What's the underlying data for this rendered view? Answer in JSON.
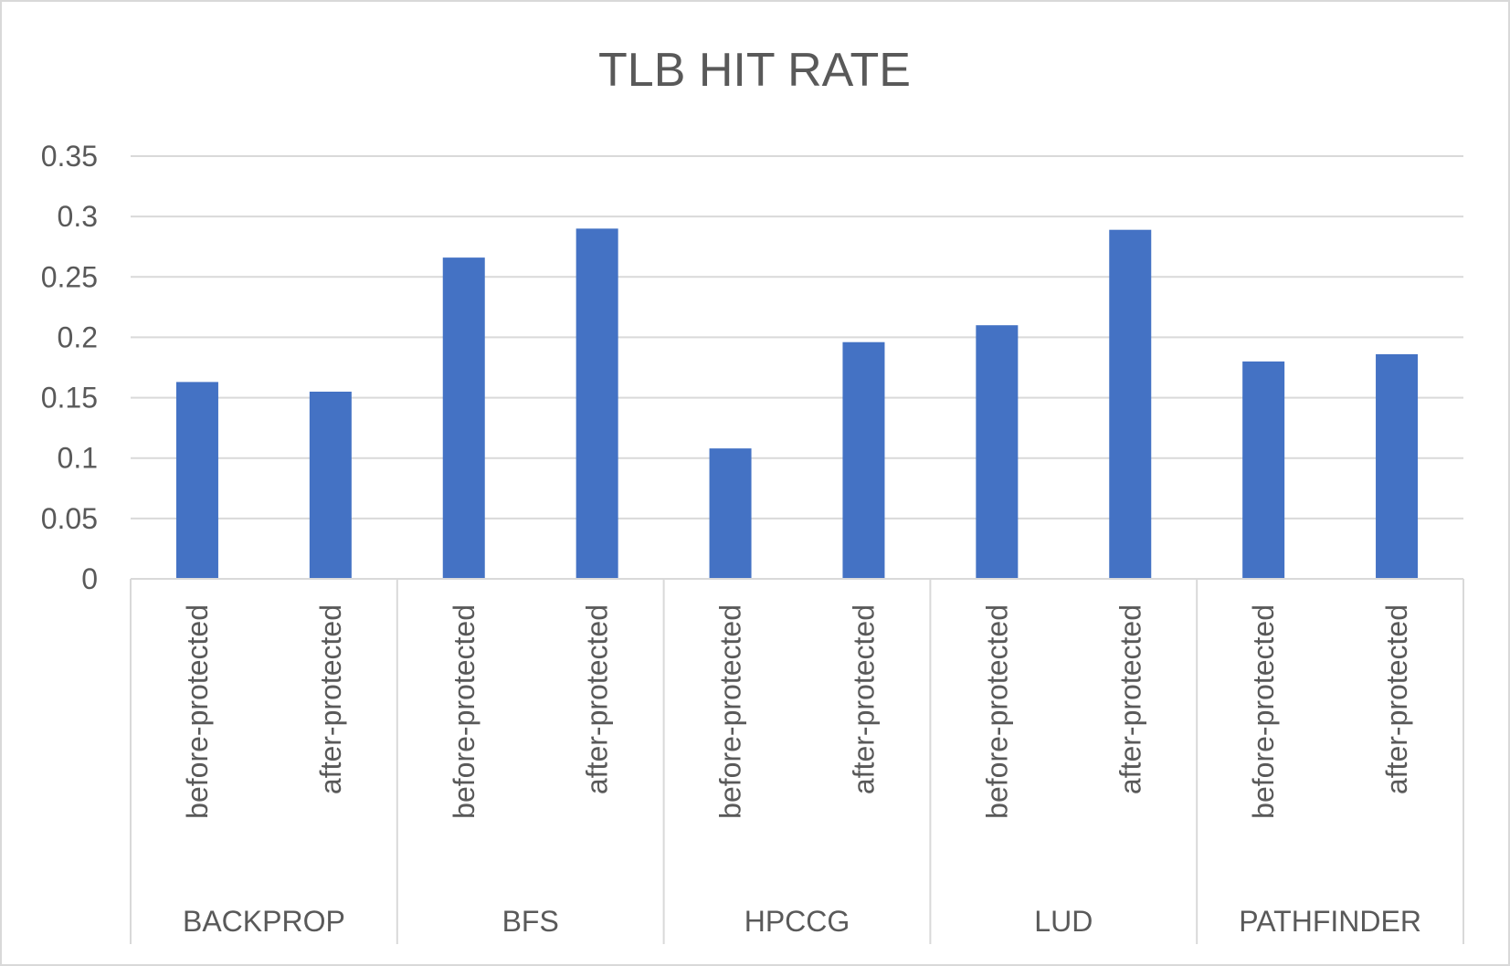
{
  "chart_data": {
    "type": "bar",
    "title": "TLB HIT RATE",
    "xlabel": "",
    "ylabel": "",
    "ylim": [
      0,
      0.35
    ],
    "yticks": [
      "0",
      "0.05",
      "0.1",
      "0.15",
      "0.2",
      "0.25",
      "0.3",
      "0.35"
    ],
    "grid": true,
    "legend": "none",
    "bar_color": "#4472c4",
    "groups": [
      {
        "name": "BACKPROP",
        "categories": [
          "before-protected",
          "after-protected"
        ],
        "values": [
          0.163,
          0.155
        ]
      },
      {
        "name": "BFS",
        "categories": [
          "before-protected",
          "after-protected"
        ],
        "values": [
          0.266,
          0.29
        ]
      },
      {
        "name": "HPCCG",
        "categories": [
          "before-protected",
          "after-protected"
        ],
        "values": [
          0.108,
          0.196
        ]
      },
      {
        "name": "LUD",
        "categories": [
          "before-protected",
          "after-protected"
        ],
        "values": [
          0.21,
          0.289
        ]
      },
      {
        "name": "PATHFINDER",
        "categories": [
          "before-protected",
          "after-protected"
        ],
        "values": [
          0.18,
          0.186
        ]
      }
    ]
  }
}
